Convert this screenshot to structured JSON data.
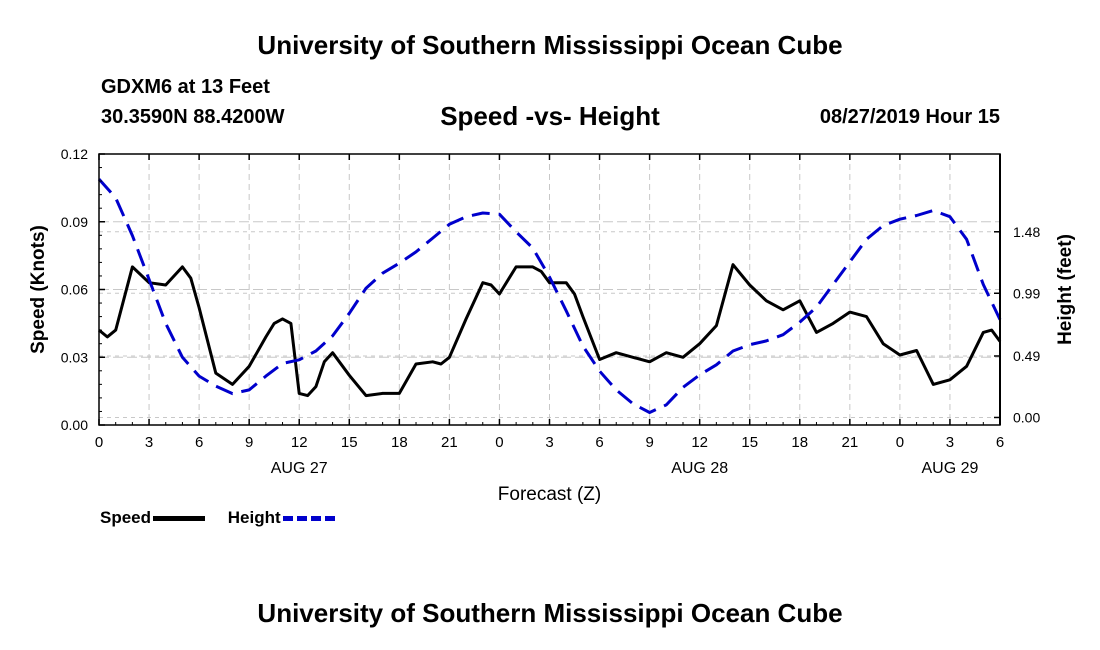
{
  "header": {
    "title": "University of Southern Mississippi Ocean Cube",
    "station": "GDXM6 at 13 Feet",
    "coords": "30.3590N 88.4200W",
    "subtitle": "Speed -vs- Height",
    "datetime": "08/27/2019 Hour 15"
  },
  "footer": {
    "title": "University of Southern Mississippi Ocean Cube"
  },
  "legend": {
    "speed": "Speed",
    "height": "Height"
  },
  "colors": {
    "speed": "#000000",
    "height": "#0000cc",
    "grid": "#c8c8c8"
  },
  "chart_data": {
    "type": "line",
    "title": "Speed -vs- Height",
    "xlabel": "Forecast (Z)",
    "ylabel": "Speed (Knots)",
    "y2label": "Height (feet)",
    "xlim": [
      0,
      54
    ],
    "ylim": [
      0,
      0.12
    ],
    "y2lim": [
      -0.06,
      2.1
    ],
    "x_ticks": [
      0,
      3,
      6,
      9,
      12,
      15,
      18,
      21,
      24,
      27,
      30,
      33,
      36,
      39,
      42,
      45,
      48,
      51,
      54
    ],
    "x_tick_labels": [
      "0",
      "3",
      "6",
      "9",
      "12",
      "15",
      "18",
      "21",
      "0",
      "3",
      "6",
      "9",
      "12",
      "15",
      "18",
      "21",
      "0",
      "3",
      "6"
    ],
    "date_labels": [
      {
        "x": 12,
        "text": "AUG 27"
      },
      {
        "x": 36,
        "text": "AUG 28"
      },
      {
        "x": 51,
        "text": "AUG 29"
      }
    ],
    "y_ticks": [
      0,
      0.03,
      0.06,
      0.09,
      0.12
    ],
    "y_tick_labels": [
      "0.00",
      "0.03",
      "0.06",
      "0.09",
      "0.12"
    ],
    "y2_ticks": [
      0,
      0.49,
      0.99,
      1.48
    ],
    "y2_tick_labels": [
      "0.00",
      "0.49",
      "0.99",
      "1.48"
    ],
    "grid": true,
    "legend_position": "bottom-left",
    "series": [
      {
        "name": "Speed",
        "axis": "left",
        "style": "solid",
        "x": [
          0,
          0.5,
          1,
          2,
          3,
          4,
          5,
          5.5,
          6,
          7,
          8,
          9,
          10,
          10.5,
          11,
          11.5,
          12,
          12.5,
          13,
          13.5,
          14,
          15,
          16,
          17,
          18,
          19,
          20,
          20.5,
          21,
          22,
          23,
          23.5,
          24,
          25,
          26,
          26.5,
          27,
          28,
          28.5,
          29,
          30,
          31,
          32,
          33,
          34,
          35,
          36,
          37,
          38,
          39,
          40,
          41,
          42,
          43,
          44,
          45,
          46,
          47,
          48,
          49,
          50,
          51,
          52,
          53,
          53.5,
          54
        ],
        "values": [
          0.042,
          0.039,
          0.042,
          0.07,
          0.063,
          0.062,
          0.07,
          0.065,
          0.052,
          0.023,
          0.018,
          0.026,
          0.039,
          0.045,
          0.047,
          0.045,
          0.014,
          0.013,
          0.017,
          0.028,
          0.032,
          0.022,
          0.013,
          0.014,
          0.014,
          0.027,
          0.028,
          0.027,
          0.03,
          0.047,
          0.063,
          0.062,
          0.058,
          0.07,
          0.07,
          0.068,
          0.063,
          0.063,
          0.058,
          0.048,
          0.029,
          0.032,
          0.03,
          0.028,
          0.032,
          0.03,
          0.036,
          0.044,
          0.071,
          0.062,
          0.055,
          0.051,
          0.055,
          0.041,
          0.045,
          0.05,
          0.048,
          0.036,
          0.031,
          0.033,
          0.018,
          0.02,
          0.026,
          0.041,
          0.042,
          0.037
        ]
      },
      {
        "name": "Height",
        "axis": "right",
        "style": "dashed",
        "x": [
          0,
          1,
          2,
          3,
          4,
          5,
          6,
          7,
          8,
          9,
          10,
          11,
          12,
          13,
          14,
          15,
          16,
          17,
          18,
          19,
          20,
          21,
          22,
          23,
          24,
          25,
          26,
          27,
          28,
          29,
          30,
          31,
          32,
          33,
          34,
          35,
          36,
          37,
          38,
          39,
          40,
          41,
          42,
          43,
          44,
          45,
          46,
          47,
          48,
          49,
          50,
          51,
          52,
          53,
          54
        ],
        "values": [
          1.9,
          1.75,
          1.45,
          1.1,
          0.75,
          0.48,
          0.33,
          0.25,
          0.19,
          0.22,
          0.33,
          0.43,
          0.46,
          0.53,
          0.65,
          0.83,
          1.03,
          1.15,
          1.23,
          1.32,
          1.43,
          1.54,
          1.6,
          1.63,
          1.62,
          1.48,
          1.35,
          1.12,
          0.85,
          0.57,
          0.37,
          0.22,
          0.11,
          0.04,
          0.1,
          0.24,
          0.34,
          0.42,
          0.53,
          0.58,
          0.61,
          0.66,
          0.76,
          0.88,
          1.06,
          1.24,
          1.42,
          1.53,
          1.58,
          1.61,
          1.65,
          1.6,
          1.42,
          1.06,
          0.78
        ]
      }
    ]
  }
}
